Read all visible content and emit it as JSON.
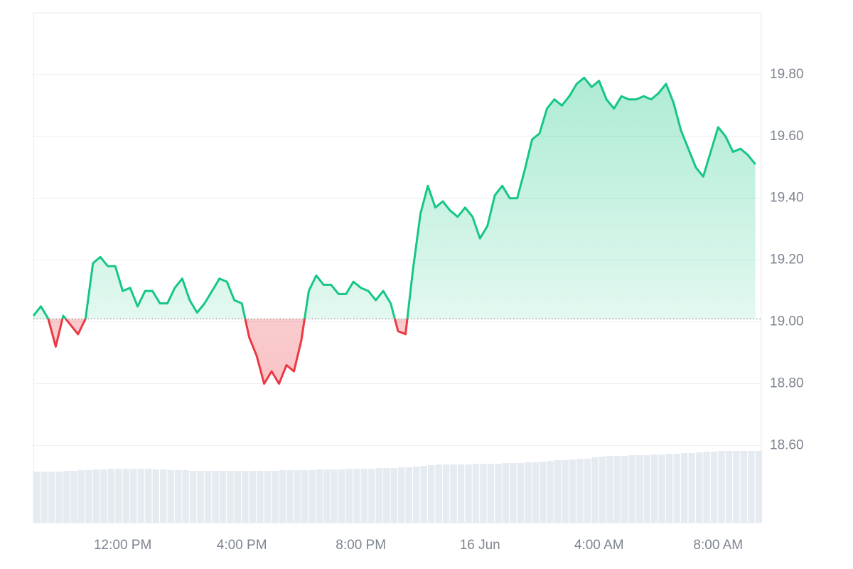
{
  "chart_data": {
    "type": "line",
    "x": [
      9,
      9.25,
      9.5,
      9.75,
      10,
      10.25,
      10.5,
      10.75,
      11,
      11.25,
      11.5,
      11.75,
      12,
      12.25,
      12.5,
      12.75,
      13,
      13.25,
      13.5,
      13.75,
      14,
      14.25,
      14.5,
      14.75,
      15,
      15.25,
      15.5,
      15.75,
      16,
      16.25,
      16.5,
      16.75,
      17,
      17.25,
      17.5,
      17.75,
      18,
      18.25,
      18.5,
      18.75,
      19,
      19.25,
      19.5,
      19.75,
      20,
      20.25,
      20.5,
      20.75,
      21,
      21.25,
      21.5,
      21.75,
      22,
      22.25,
      22.5,
      22.75,
      23,
      23.25,
      23.5,
      23.75,
      24,
      24.25,
      24.5,
      24.75,
      25,
      25.25,
      25.5,
      25.75,
      26,
      26.25,
      26.5,
      26.75,
      27,
      27.25,
      27.5,
      27.75,
      28,
      28.25,
      28.5,
      28.75,
      29,
      29.25,
      29.5,
      29.75,
      30,
      30.25,
      30.5,
      30.75,
      31,
      31.25,
      31.5,
      31.75,
      32,
      32.25,
      32.5,
      32.75,
      33,
      33.25
    ],
    "values": [
      19.02,
      19.05,
      19.01,
      18.92,
      19.02,
      18.99,
      18.96,
      19.01,
      19.19,
      19.21,
      19.18,
      19.18,
      19.1,
      19.11,
      19.05,
      19.1,
      19.1,
      19.06,
      19.06,
      19.11,
      19.14,
      19.07,
      19.03,
      19.06,
      19.1,
      19.14,
      19.13,
      19.07,
      19.06,
      18.95,
      18.89,
      18.8,
      18.84,
      18.8,
      18.86,
      18.84,
      18.94,
      19.1,
      19.15,
      19.12,
      19.12,
      19.09,
      19.09,
      19.13,
      19.11,
      19.1,
      19.07,
      19.1,
      19.06,
      18.97,
      18.96,
      19.17,
      19.35,
      19.44,
      19.37,
      19.39,
      19.36,
      19.34,
      19.37,
      19.34,
      19.27,
      19.31,
      19.41,
      19.44,
      19.4,
      19.4,
      19.49,
      19.59,
      19.61,
      19.69,
      19.72,
      19.7,
      19.73,
      19.77,
      19.79,
      19.76,
      19.78,
      19.72,
      19.69,
      19.73,
      19.72,
      19.72,
      19.73,
      19.72,
      19.74,
      19.77,
      19.71,
      19.62,
      19.56,
      19.5,
      19.47,
      19.55,
      19.63,
      19.6,
      19.55,
      19.56,
      19.54,
      19.51
    ],
    "volume": [
      72,
      72,
      72,
      72,
      73,
      73,
      74,
      74,
      75,
      75,
      76,
      76,
      76,
      76,
      76,
      76,
      75,
      75,
      74,
      74,
      74,
      73,
      73,
      73,
      73,
      73,
      73,
      73,
      73,
      73,
      73,
      73,
      73,
      74,
      74,
      74,
      74,
      74,
      75,
      75,
      75,
      75,
      76,
      76,
      76,
      76,
      77,
      77,
      77,
      78,
      78,
      79,
      80,
      81,
      82,
      82,
      82,
      82,
      82,
      83,
      83,
      83,
      83,
      84,
      84,
      84,
      85,
      85,
      86,
      87,
      88,
      88,
      89,
      90,
      90,
      92,
      93,
      94,
      94,
      94,
      95,
      95,
      95,
      96,
      96,
      97,
      97,
      98,
      98,
      99,
      100,
      100,
      101,
      101,
      101,
      101,
      101,
      101
    ],
    "baseline": 19.01,
    "up_color": "#16c784",
    "down_color": "#ea3943",
    "volume_color": "#e6ebf2",
    "xlim": [
      9,
      33.45
    ],
    "xticks": [
      {
        "value": 12,
        "label": "12:00 PM"
      },
      {
        "value": 16,
        "label": "4:00 PM"
      },
      {
        "value": 20,
        "label": "8:00 PM"
      },
      {
        "value": 24,
        "label": "16 Jun"
      },
      {
        "value": 28,
        "label": "4:00 AM"
      },
      {
        "value": 32,
        "label": "8:00 AM"
      }
    ],
    "ylim": [
      18.35,
      20.0
    ],
    "yticks": [
      {
        "value": 18.6,
        "label": "18.60"
      },
      {
        "value": 18.8,
        "label": "18.80"
      },
      {
        "value": 19.0,
        "label": "19.00"
      },
      {
        "value": 19.2,
        "label": "19.20"
      },
      {
        "value": 19.4,
        "label": "19.40"
      },
      {
        "value": 19.6,
        "label": "19.60"
      },
      {
        "value": 19.8,
        "label": "19.80"
      }
    ],
    "grid": true
  }
}
